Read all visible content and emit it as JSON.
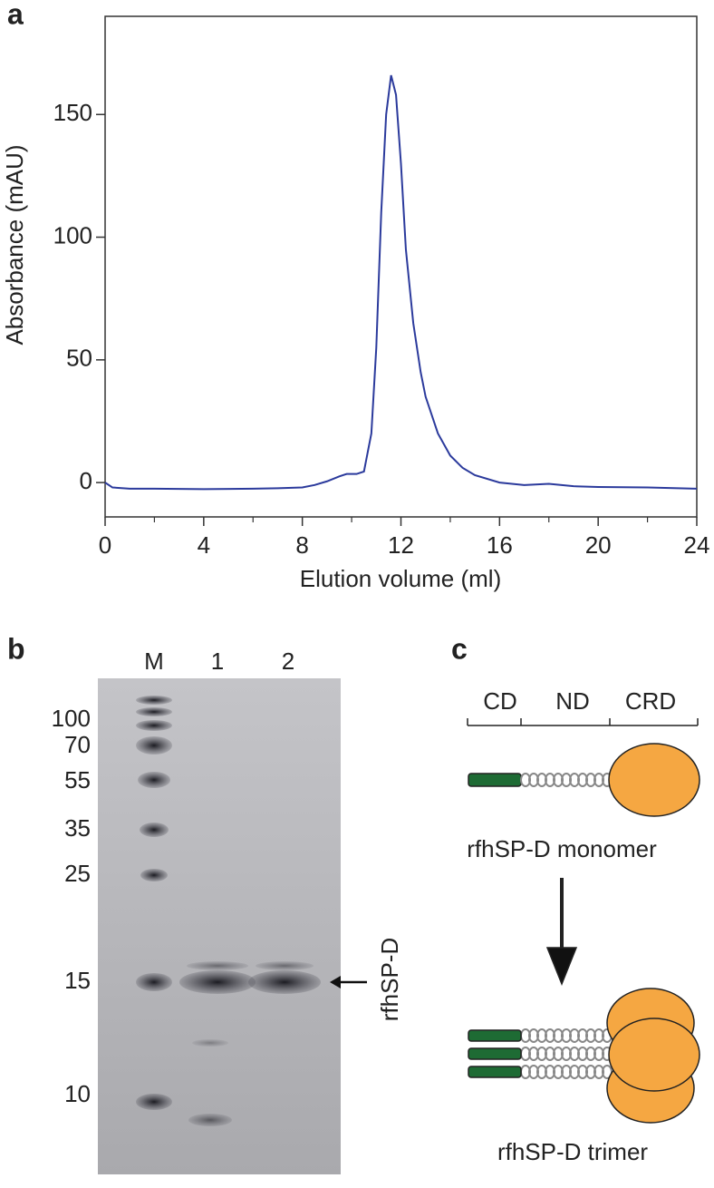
{
  "chart_data": {
    "type": "line",
    "panel_label": "a",
    "x_label": "Elution volume (ml)",
    "y_label": "Absorbance (mAU)",
    "x": [
      0,
      0.3,
      1,
      2,
      4,
      6,
      7,
      8,
      8.5,
      9,
      9.5,
      9.8,
      10.2,
      10.5,
      10.8,
      11,
      11.2,
      11.4,
      11.6,
      11.8,
      12,
      12.2,
      12.5,
      12.8,
      13,
      13.5,
      14,
      14.5,
      15,
      16,
      17,
      18,
      19,
      20,
      22,
      24
    ],
    "series": [
      {
        "color": "#2b3a9c",
        "values": [
          0,
          -2,
          -2.5,
          -2.5,
          -2.7,
          -2.5,
          -2.3,
          -2,
          -1,
          0.5,
          2.5,
          3.5,
          3.5,
          4.5,
          20,
          55,
          110,
          150,
          166,
          158,
          130,
          95,
          65,
          45,
          35,
          20,
          11,
          6,
          3,
          0,
          -1,
          -0.5,
          -1.5,
          -1.8,
          -2,
          -2.5
        ]
      }
    ],
    "xlim": [
      0,
      24
    ],
    "ylim": [
      -14,
      190
    ],
    "xticks": [
      0,
      4,
      8,
      12,
      16,
      20,
      24
    ],
    "xminor_ticks": [
      2,
      6,
      10,
      14,
      18,
      22
    ],
    "yticks": [
      0,
      50,
      100,
      150
    ]
  },
  "panel_b": {
    "label": "b",
    "lanes": [
      "M",
      "1",
      "2"
    ],
    "markers": [
      100,
      70,
      55,
      35,
      25,
      15,
      10
    ],
    "band_label": "rfhSP-D"
  },
  "panel_c": {
    "label": "c",
    "domains": [
      "CD",
      "ND",
      "CRD"
    ],
    "monomer_label": "rfhSP-D monomer",
    "trimer_label": "rfhSP-D trimer"
  }
}
